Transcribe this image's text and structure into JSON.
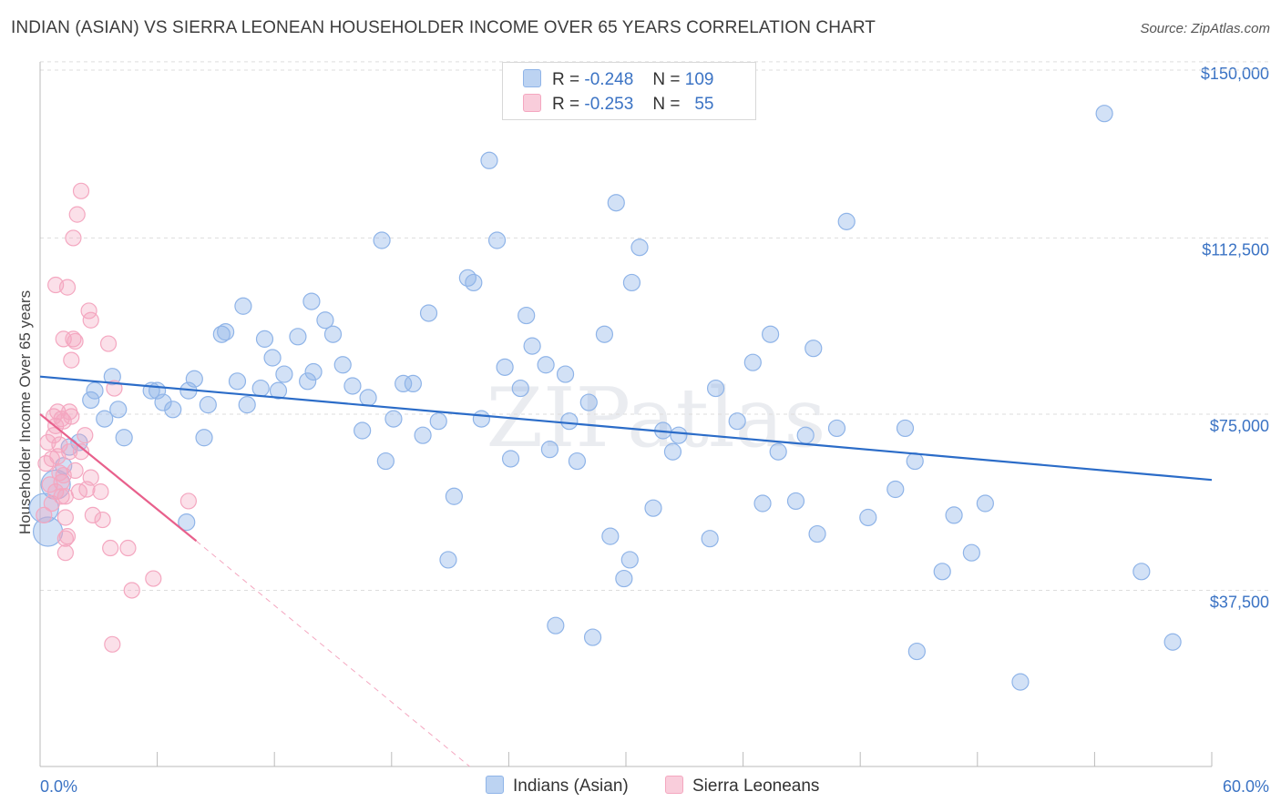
{
  "title": "INDIAN (ASIAN) VS SIERRA LEONEAN HOUSEHOLDER INCOME OVER 65 YEARS CORRELATION CHART",
  "source": "Source: ZipAtlas.com",
  "watermark": "ZIPatlas",
  "chart_data": {
    "type": "scatter",
    "ylabel": "Householder Income Over 65 years",
    "xlim": [
      0,
      60
    ],
    "ylim": [
      0,
      152500
    ],
    "x_tick_labels": [
      "0.0%",
      "60.0%"
    ],
    "y_ticks": [
      37500,
      75000,
      112500,
      150000
    ],
    "y_tick_labels": [
      "$37,500",
      "$75,000",
      "$112,500",
      "$150,000"
    ],
    "grid": "horizontal dashed",
    "legend_position": "top-center and bottom",
    "colors": {
      "indians": "#8fb4e8",
      "sierra": "#f4a7c0",
      "indians_line": "#2b6cc8",
      "sierra_line": "#e8608c"
    },
    "legend": [
      {
        "r_label": "R =",
        "r_value": "-0.248",
        "n_label": "N =",
        "n_value": "109"
      },
      {
        "r_label": "R =",
        "r_value": "-0.253",
        "n_label": "N =",
        "n_value": "55"
      }
    ],
    "series": [
      {
        "name": "Indians (Asian)",
        "trend": {
          "x": [
            0,
            60
          ],
          "y": [
            83000,
            61000
          ]
        },
        "points": [
          [
            0.2,
            55000
          ],
          [
            0.4,
            50000
          ],
          [
            0.8,
            60000
          ],
          [
            1.2,
            64000
          ],
          [
            1.5,
            68000
          ],
          [
            2.0,
            69000
          ],
          [
            2.6,
            78000
          ],
          [
            2.8,
            80000
          ],
          [
            3.3,
            74000
          ],
          [
            3.7,
            83000
          ],
          [
            4.0,
            76000
          ],
          [
            4.3,
            70000
          ],
          [
            5.7,
            80000
          ],
          [
            6.0,
            80000
          ],
          [
            6.3,
            77500
          ],
          [
            6.8,
            76000
          ],
          [
            7.5,
            52000
          ],
          [
            7.6,
            80000
          ],
          [
            7.9,
            82500
          ],
          [
            8.4,
            70000
          ],
          [
            8.6,
            77000
          ],
          [
            9.3,
            92000
          ],
          [
            9.5,
            92500
          ],
          [
            10.1,
            82000
          ],
          [
            10.4,
            98000
          ],
          [
            10.6,
            77000
          ],
          [
            11.3,
            80500
          ],
          [
            11.5,
            91000
          ],
          [
            11.9,
            87000
          ],
          [
            12.2,
            80000
          ],
          [
            12.5,
            83500
          ],
          [
            13.2,
            91500
          ],
          [
            13.7,
            82000
          ],
          [
            13.9,
            99000
          ],
          [
            14.0,
            84000
          ],
          [
            14.6,
            95000
          ],
          [
            15.0,
            92000
          ],
          [
            15.5,
            85500
          ],
          [
            16.0,
            81000
          ],
          [
            16.5,
            71500
          ],
          [
            16.8,
            78500
          ],
          [
            17.5,
            112000
          ],
          [
            17.7,
            65000
          ],
          [
            18.1,
            74000
          ],
          [
            18.6,
            81500
          ],
          [
            19.1,
            81500
          ],
          [
            19.6,
            70500
          ],
          [
            19.9,
            96500
          ],
          [
            20.4,
            73500
          ],
          [
            20.9,
            44000
          ],
          [
            21.2,
            57500
          ],
          [
            21.9,
            104000
          ],
          [
            22.2,
            103000
          ],
          [
            22.6,
            74000
          ],
          [
            23.0,
            129000
          ],
          [
            23.4,
            112000
          ],
          [
            23.8,
            85000
          ],
          [
            24.1,
            65500
          ],
          [
            24.6,
            80500
          ],
          [
            24.9,
            96000
          ],
          [
            25.2,
            89500
          ],
          [
            25.9,
            85500
          ],
          [
            26.1,
            67500
          ],
          [
            26.4,
            30000
          ],
          [
            26.9,
            83500
          ],
          [
            27.1,
            73500
          ],
          [
            27.5,
            65000
          ],
          [
            28.1,
            77500
          ],
          [
            28.3,
            27500
          ],
          [
            28.9,
            92000
          ],
          [
            29.2,
            49000
          ],
          [
            29.5,
            120000
          ],
          [
            29.9,
            40000
          ],
          [
            30.2,
            44000
          ],
          [
            30.3,
            103000
          ],
          [
            30.7,
            110500
          ],
          [
            31.4,
            55000
          ],
          [
            31.9,
            71500
          ],
          [
            32.4,
            67000
          ],
          [
            32.7,
            70500
          ],
          [
            34.3,
            48500
          ],
          [
            34.6,
            80500
          ],
          [
            35.7,
            73500
          ],
          [
            36.5,
            86000
          ],
          [
            37.0,
            56000
          ],
          [
            37.4,
            92000
          ],
          [
            37.8,
            67000
          ],
          [
            38.7,
            56500
          ],
          [
            39.2,
            70500
          ],
          [
            39.6,
            89000
          ],
          [
            39.8,
            49500
          ],
          [
            40.8,
            72000
          ],
          [
            41.3,
            116000
          ],
          [
            42.4,
            53000
          ],
          [
            43.8,
            59000
          ],
          [
            44.3,
            72000
          ],
          [
            44.8,
            65000
          ],
          [
            44.9,
            24500
          ],
          [
            46.2,
            41500
          ],
          [
            46.8,
            53500
          ],
          [
            47.7,
            45500
          ],
          [
            48.4,
            56000
          ],
          [
            50.2,
            18000
          ],
          [
            54.5,
            139000
          ],
          [
            56.4,
            41500
          ],
          [
            58.0,
            26500
          ]
        ]
      },
      {
        "name": "Sierra Leoneans",
        "trend": {
          "x": [
            0,
            8
          ],
          "y": [
            75000,
            48000
          ]
        },
        "trend_dashed": {
          "x": [
            8,
            22
          ],
          "y": [
            48000,
            0
          ]
        },
        "points": [
          [
            0.2,
            53500
          ],
          [
            0.3,
            64500
          ],
          [
            0.4,
            69000
          ],
          [
            0.5,
            60000
          ],
          [
            0.6,
            56000
          ],
          [
            0.6,
            65500
          ],
          [
            0.7,
            74500
          ],
          [
            0.7,
            70500
          ],
          [
            0.8,
            72500
          ],
          [
            0.8,
            58500
          ],
          [
            0.8,
            102500
          ],
          [
            0.9,
            75500
          ],
          [
            1.0,
            68500
          ],
          [
            1.1,
            60500
          ],
          [
            1.1,
            74000
          ],
          [
            1.2,
            73500
          ],
          [
            1.2,
            91000
          ],
          [
            1.3,
            53000
          ],
          [
            1.3,
            48500
          ],
          [
            1.3,
            57500
          ],
          [
            1.3,
            45500
          ],
          [
            1.4,
            102000
          ],
          [
            1.5,
            75500
          ],
          [
            1.5,
            67000
          ],
          [
            1.6,
            86500
          ],
          [
            1.6,
            74500
          ],
          [
            1.7,
            112500
          ],
          [
            1.7,
            91000
          ],
          [
            1.8,
            90500
          ],
          [
            1.8,
            63000
          ],
          [
            1.9,
            117500
          ],
          [
            2.0,
            58500
          ],
          [
            2.1,
            122500
          ],
          [
            2.1,
            67000
          ],
          [
            2.3,
            70500
          ],
          [
            2.4,
            59000
          ],
          [
            2.5,
            97000
          ],
          [
            2.6,
            95000
          ],
          [
            2.6,
            61500
          ],
          [
            2.7,
            53500
          ],
          [
            3.1,
            58500
          ],
          [
            3.2,
            52500
          ],
          [
            3.5,
            90000
          ],
          [
            3.6,
            46500
          ],
          [
            3.7,
            26000
          ],
          [
            3.8,
            80500
          ],
          [
            4.5,
            46500
          ],
          [
            4.7,
            37500
          ],
          [
            5.8,
            40000
          ],
          [
            7.6,
            56500
          ],
          [
            1.0,
            62500
          ],
          [
            1.1,
            57500
          ],
          [
            0.9,
            66000
          ],
          [
            1.2,
            62000
          ],
          [
            1.4,
            49000
          ]
        ]
      }
    ]
  }
}
